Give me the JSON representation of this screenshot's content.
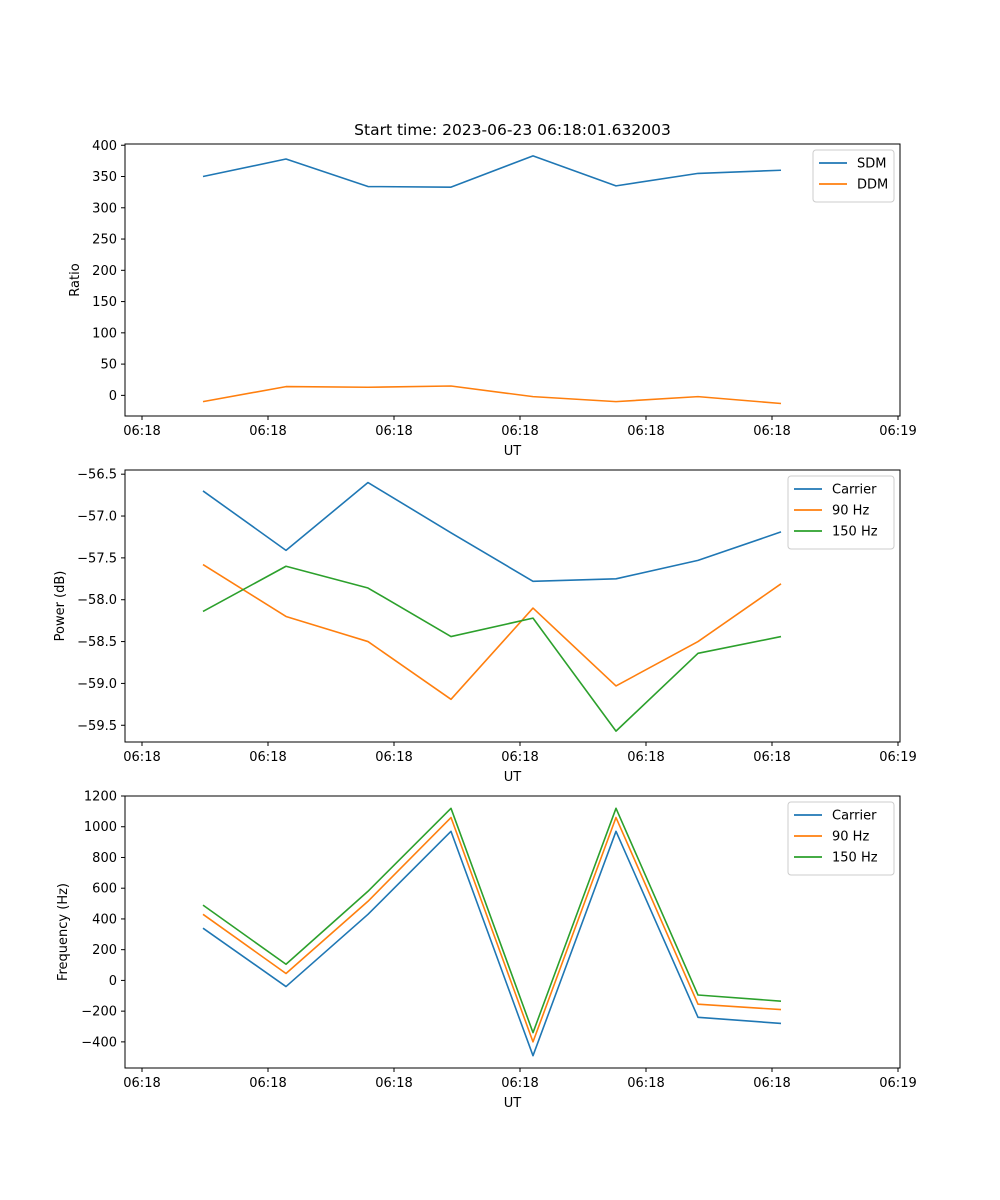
{
  "chart_data": [
    {
      "type": "line",
      "title": "Start time: 2023-06-23 06:18:01.632003",
      "xlabel": "UT",
      "ylabel": "Ratio",
      "xticklabels": [
        "06:18",
        "06:18",
        "06:18",
        "06:18",
        "06:18",
        "06:18",
        "06:19"
      ],
      "yticks": [
        0,
        50,
        100,
        150,
        200,
        250,
        300,
        350,
        400
      ],
      "ylim": [
        -33,
        402
      ],
      "legend_position": "top-right",
      "grid": false,
      "series": [
        {
          "name": "SDM",
          "color": "#1f77b4",
          "values": [
            350,
            378,
            334,
            333,
            383,
            335,
            355,
            360
          ]
        },
        {
          "name": "DDM",
          "color": "#ff7f0e",
          "values": [
            -10,
            14,
            13,
            15,
            -2,
            -10,
            -2,
            -13
          ]
        }
      ]
    },
    {
      "type": "line",
      "title": "",
      "xlabel": "UT",
      "ylabel": "Power (dB)",
      "xticklabels": [
        "06:18",
        "06:18",
        "06:18",
        "06:18",
        "06:18",
        "06:18",
        "06:19"
      ],
      "yticks": [
        -56.5,
        -57.0,
        -57.5,
        -58.0,
        -58.5,
        -59.0,
        -59.5
      ],
      "yticklabels": [
        "−56.5",
        "−57.0",
        "−57.5",
        "−58.0",
        "−58.5",
        "−59.0",
        "−59.5"
      ],
      "ylim": [
        -59.7,
        -56.45
      ],
      "legend_position": "top-right",
      "grid": false,
      "series": [
        {
          "name": "Carrier",
          "color": "#1f77b4",
          "values": [
            -56.7,
            -57.41,
            -56.6,
            -57.2,
            -57.78,
            -57.75,
            -57.53,
            -57.19
          ]
        },
        {
          "name": "90 Hz",
          "color": "#ff7f0e",
          "values": [
            -57.58,
            -58.2,
            -58.5,
            -59.19,
            -58.1,
            -59.03,
            -58.5,
            -57.81
          ]
        },
        {
          "name": "150 Hz",
          "color": "#2ca02c",
          "values": [
            -58.14,
            -57.6,
            -57.86,
            -58.44,
            -58.22,
            -59.57,
            -58.64,
            -58.44
          ]
        }
      ]
    },
    {
      "type": "line",
      "title": "",
      "xlabel": "UT",
      "ylabel": "Frequency (Hz)",
      "xticklabels": [
        "06:18",
        "06:18",
        "06:18",
        "06:18",
        "06:18",
        "06:18",
        "06:19"
      ],
      "yticks": [
        -400,
        -200,
        0,
        200,
        400,
        600,
        800,
        1000,
        1200
      ],
      "yticklabels": [
        "−400",
        "−200",
        "0",
        "200",
        "400",
        "600",
        "800",
        "1000",
        "1200"
      ],
      "ylim": [
        -570,
        1200
      ],
      "legend_position": "top-right",
      "grid": false,
      "series": [
        {
          "name": "Carrier",
          "color": "#1f77b4",
          "values": [
            340,
            -40,
            430,
            970,
            -490,
            970,
            -240,
            -280
          ]
        },
        {
          "name": "90 Hz",
          "color": "#ff7f0e",
          "values": [
            430,
            45,
            515,
            1060,
            -400,
            1060,
            -155,
            -190
          ]
        },
        {
          "name": "150 Hz",
          "color": "#2ca02c",
          "values": [
            490,
            105,
            580,
            1120,
            -340,
            1120,
            -95,
            -135
          ]
        }
      ]
    }
  ]
}
